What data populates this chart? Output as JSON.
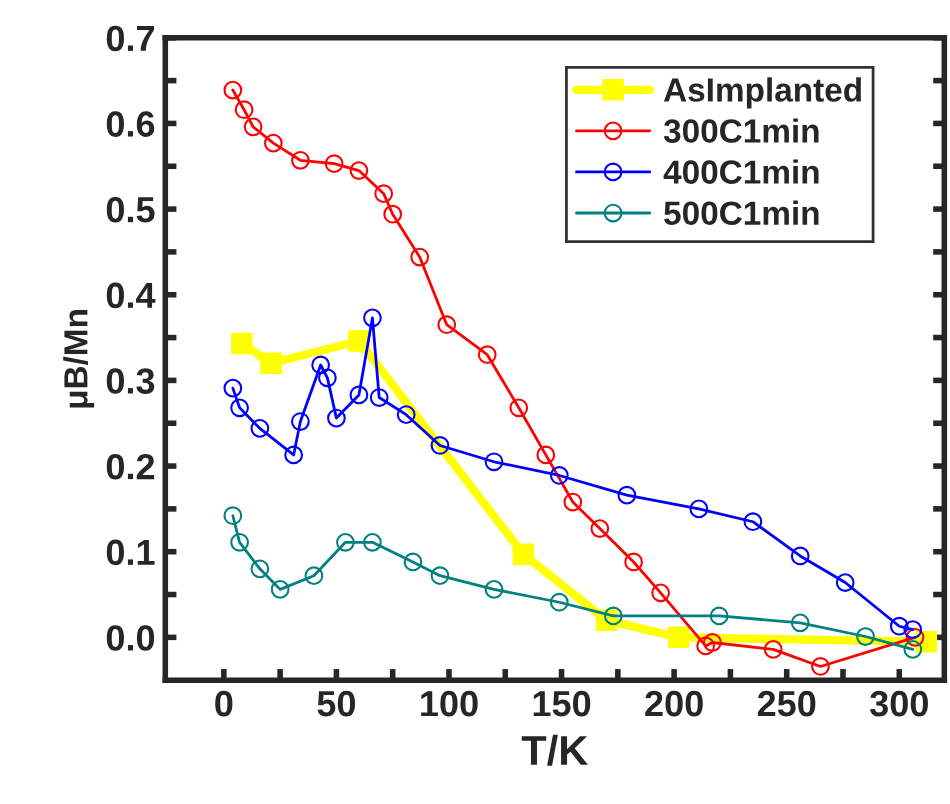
{
  "chart_data": {
    "type": "line",
    "xlabel": "T/K",
    "ylabel": "μB/Mn",
    "xlim": [
      -26,
      320
    ],
    "ylim": [
      -0.05,
      0.7
    ],
    "xticks": [
      0,
      {
        "value": 25,
        "label": null
      },
      50,
      {
        "value": 75,
        "label": null
      },
      100,
      {
        "value": 125,
        "label": null
      },
      150,
      {
        "value": 175,
        "label": null
      },
      200,
      {
        "value": 225,
        "label": null
      },
      250,
      {
        "value": 275,
        "label": null
      },
      300
    ],
    "yticks": [
      {
        "value": 0.0,
        "label": "0.0"
      },
      {
        "value": 0.05,
        "label": null
      },
      0.1,
      {
        "value": 0.15,
        "label": null
      },
      0.2,
      {
        "value": 0.25,
        "label": null
      },
      0.3,
      {
        "value": 0.35,
        "label": null
      },
      0.4,
      {
        "value": 0.45,
        "label": null
      },
      0.5,
      {
        "value": 0.55,
        "label": null
      },
      0.6,
      {
        "value": 0.65,
        "label": null
      },
      0.7
    ],
    "legend": "top right",
    "grid": false,
    "series": [
      {
        "name": "AsImplanted",
        "color": "#ffff00",
        "marker": "square",
        "x": [
          8,
          21,
          60,
          133,
          170,
          202,
          312
        ],
        "values": [
          0.343,
          0.32,
          0.346,
          0.097,
          0.02,
          0.0,
          -0.005
        ]
      },
      {
        "name": "300C1min",
        "color": "#ff0000",
        "marker": "circle",
        "x": [
          4,
          9,
          13,
          22,
          34,
          49,
          60,
          71,
          75,
          87,
          99,
          117,
          131,
          143,
          155,
          167,
          182,
          194,
          214,
          217,
          244,
          265,
          307
        ],
        "values": [
          0.639,
          0.616,
          0.596,
          0.577,
          0.557,
          0.553,
          0.545,
          0.518,
          0.494,
          0.444,
          0.365,
          0.33,
          0.268,
          0.213,
          0.158,
          0.127,
          0.088,
          0.052,
          -0.01,
          -0.006,
          -0.014,
          -0.034,
          0.0
        ]
      },
      {
        "name": "400C1min",
        "color": "#0000ff",
        "marker": "circle",
        "x": [
          4,
          7,
          16,
          31,
          34,
          43,
          46,
          50,
          60,
          66,
          69,
          81,
          96,
          120,
          149,
          179,
          211,
          235,
          256,
          276,
          300,
          306
        ],
        "values": [
          0.291,
          0.268,
          0.244,
          0.213,
          0.252,
          0.318,
          0.303,
          0.256,
          0.283,
          0.373,
          0.28,
          0.26,
          0.224,
          0.205,
          0.189,
          0.166,
          0.15,
          0.135,
          0.095,
          0.064,
          0.013,
          0.009
        ]
      },
      {
        "name": "500C1min",
        "color": "#008080",
        "marker": "circle",
        "x": [
          4,
          7,
          16,
          25,
          40,
          54,
          66,
          84,
          96,
          120,
          149,
          173,
          220,
          256,
          285,
          306
        ],
        "values": [
          0.142,
          0.111,
          0.08,
          0.056,
          0.072,
          0.111,
          0.111,
          0.088,
          0.072,
          0.056,
          0.041,
          0.025,
          0.025,
          0.017,
          0.001,
          -0.014
        ]
      }
    ]
  }
}
